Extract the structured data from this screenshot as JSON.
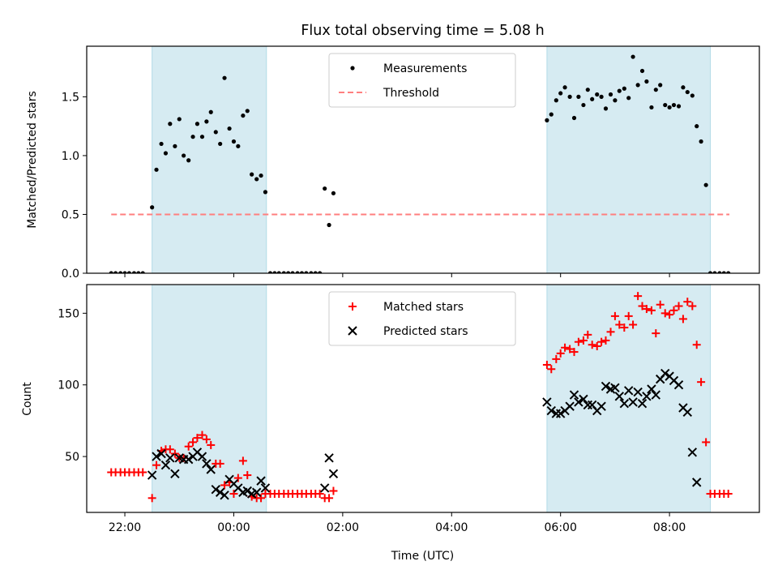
{
  "chart_data": [
    {
      "type": "scatter",
      "title": "Flux total observing time = 5.08 h",
      "ylabel": "Matched/Predicted stars",
      "xlabel": "",
      "xlim": [
        -2.7,
        9.65
      ],
      "ylim": [
        0,
        1.93
      ],
      "yticks": [
        0.0,
        0.5,
        1.0,
        1.5
      ],
      "ytick_labels": [
        "0.0",
        "0.5",
        "1.0",
        "1.5"
      ],
      "xticks": [
        -2,
        0,
        2,
        4,
        6,
        8
      ],
      "xticks_labeled": false,
      "observing_windows": [
        [
          -1.5,
          0.6
        ],
        [
          5.75,
          8.75
        ]
      ],
      "window_color": "#add8e6",
      "legend": {
        "placement": "upper center",
        "entries": [
          "Measurements",
          "Threshold"
        ]
      },
      "series": [
        {
          "name": "Measurements",
          "style": "dot",
          "color": "#000000",
          "x": [
            -2.25,
            -2.17,
            -2.08,
            -2.0,
            -1.92,
            -1.83,
            -1.75,
            -1.67,
            -1.5,
            -1.42,
            -1.33,
            -1.25,
            -1.17,
            -1.08,
            -1.0,
            -0.92,
            -0.83,
            -0.75,
            -0.67,
            -0.58,
            -0.5,
            -0.42,
            -0.33,
            -0.25,
            -0.17,
            -0.08,
            0.0,
            0.08,
            0.17,
            0.25,
            0.33,
            0.42,
            0.5,
            0.58,
            0.67,
            0.75,
            0.83,
            0.92,
            1.0,
            1.08,
            1.17,
            1.25,
            1.33,
            1.42,
            1.5,
            1.58,
            1.67,
            1.75,
            1.83,
            5.75,
            5.83,
            5.92,
            6.0,
            6.08,
            6.17,
            6.25,
            6.33,
            6.42,
            6.5,
            6.58,
            6.67,
            6.75,
            6.83,
            6.92,
            7.0,
            7.08,
            7.17,
            7.25,
            7.33,
            7.42,
            7.5,
            7.58,
            7.67,
            7.75,
            7.83,
            7.92,
            8.0,
            8.08,
            8.17,
            8.25,
            8.33,
            8.42,
            8.5,
            8.58,
            8.67,
            8.75,
            8.83,
            8.92,
            9.0,
            9.08
          ],
          "y": [
            0,
            0,
            0,
            0,
            0,
            0,
            0,
            0,
            0.56,
            0.88,
            1.1,
            1.02,
            1.27,
            1.08,
            1.31,
            1.0,
            0.96,
            1.16,
            1.27,
            1.16,
            1.29,
            1.37,
            1.2,
            1.1,
            1.66,
            1.23,
            1.12,
            1.08,
            1.34,
            1.38,
            0.84,
            0.8,
            0.83,
            0.69,
            0,
            0,
            0,
            0,
            0,
            0,
            0,
            0,
            0,
            0,
            0,
            0,
            0.72,
            0.41,
            0.68,
            1.3,
            1.35,
            1.47,
            1.53,
            1.58,
            1.5,
            1.32,
            1.5,
            1.43,
            1.56,
            1.48,
            1.52,
            1.5,
            1.4,
            1.52,
            1.47,
            1.55,
            1.57,
            1.49,
            1.84,
            1.6,
            1.72,
            1.63,
            1.41,
            1.56,
            1.6,
            1.43,
            1.41,
            1.43,
            1.42,
            1.58,
            1.54,
            1.51,
            1.25,
            1.12,
            0.75,
            0,
            0,
            0,
            0,
            0
          ]
        },
        {
          "name": "Threshold",
          "style": "dashed-line",
          "color": "#ff7f7f",
          "x": [
            -2.25,
            9.1
          ],
          "y": [
            0.5,
            0.5
          ]
        }
      ]
    },
    {
      "type": "scatter",
      "title": "",
      "ylabel": "Count",
      "xlabel": "Time (UTC)",
      "xlim": [
        -2.7,
        9.65
      ],
      "ylim": [
        11,
        170
      ],
      "yticks": [
        50,
        100,
        150
      ],
      "ytick_labels": [
        "50",
        "100",
        "150"
      ],
      "xticks": [
        -2,
        0,
        2,
        4,
        6,
        8
      ],
      "xtick_labels": [
        "22:00",
        "00:00",
        "02:00",
        "04:00",
        "06:00",
        "08:00"
      ],
      "observing_windows": [
        [
          -1.5,
          0.6
        ],
        [
          5.75,
          8.75
        ]
      ],
      "window_color": "#add8e6",
      "legend": {
        "placement": "upper center",
        "entries": [
          "Matched stars",
          "Predicted stars"
        ]
      },
      "series": [
        {
          "name": "Matched stars",
          "style": "plus",
          "color": "#ff0000",
          "x": [
            -2.25,
            -2.17,
            -2.08,
            -2.0,
            -1.92,
            -1.83,
            -1.75,
            -1.67,
            -1.5,
            -1.42,
            -1.33,
            -1.25,
            -1.17,
            -1.08,
            -1.0,
            -0.92,
            -0.83,
            -0.75,
            -0.67,
            -0.58,
            -0.5,
            -0.42,
            -0.33,
            -0.25,
            -0.17,
            -0.08,
            0.0,
            0.08,
            0.17,
            0.25,
            0.33,
            0.42,
            0.5,
            0.58,
            0.67,
            0.75,
            0.83,
            0.92,
            1.0,
            1.08,
            1.17,
            1.25,
            1.33,
            1.42,
            1.5,
            1.58,
            1.67,
            1.75,
            1.83,
            5.75,
            5.83,
            5.92,
            6.0,
            6.08,
            6.17,
            6.25,
            6.33,
            6.42,
            6.5,
            6.58,
            6.67,
            6.75,
            6.83,
            6.92,
            7.0,
            7.08,
            7.17,
            7.25,
            7.33,
            7.42,
            7.5,
            7.58,
            7.67,
            7.75,
            7.83,
            7.92,
            8.0,
            8.08,
            8.17,
            8.25,
            8.33,
            8.42,
            8.5,
            8.58,
            8.67,
            8.75,
            8.83,
            8.92,
            9.0,
            9.08
          ],
          "y": [
            39,
            39,
            39,
            39,
            39,
            39,
            39,
            39,
            21,
            44,
            54,
            55,
            55,
            52,
            49,
            49,
            57,
            60,
            63,
            65,
            62,
            58,
            45,
            45,
            30,
            32,
            24,
            35,
            47,
            37,
            22,
            21,
            21,
            24,
            24,
            24,
            24,
            24,
            24,
            24,
            24,
            24,
            24,
            24,
            24,
            24,
            21,
            21,
            26,
            114,
            111,
            118,
            122,
            126,
            125,
            123,
            130,
            131,
            135,
            128,
            127,
            130,
            131,
            137,
            148,
            142,
            140,
            148,
            142,
            162,
            155,
            153,
            152,
            136,
            156,
            150,
            149,
            152,
            155,
            146,
            158,
            155,
            128,
            102,
            60,
            24,
            24,
            24,
            24,
            24
          ]
        },
        {
          "name": "Predicted stars",
          "style": "x",
          "color": "#000000",
          "x": [
            -1.5,
            -1.42,
            -1.33,
            -1.25,
            -1.17,
            -1.08,
            -1.0,
            -0.92,
            -0.83,
            -0.75,
            -0.67,
            -0.58,
            -0.5,
            -0.42,
            -0.33,
            -0.25,
            -0.17,
            -0.08,
            0.0,
            0.08,
            0.17,
            0.25,
            0.33,
            0.42,
            0.5,
            0.58,
            1.67,
            1.75,
            1.83,
            5.75,
            5.83,
            5.92,
            6.0,
            6.08,
            6.17,
            6.25,
            6.33,
            6.42,
            6.5,
            6.58,
            6.67,
            6.75,
            6.83,
            6.92,
            7.0,
            7.08,
            7.17,
            7.25,
            7.33,
            7.42,
            7.5,
            7.58,
            7.67,
            7.75,
            7.83,
            7.92,
            8.0,
            8.08,
            8.17,
            8.25,
            8.33,
            8.42,
            8.5,
            8.58,
            8.67,
            8.75
          ],
          "y": [
            37,
            50,
            52,
            44,
            49,
            38,
            49,
            48,
            48,
            50,
            53,
            50,
            45,
            41,
            27,
            25,
            23,
            34,
            31,
            28,
            25,
            26,
            24,
            25,
            33,
            28,
            28,
            49,
            38,
            88,
            82,
            80,
            80,
            82,
            85,
            93,
            88,
            90,
            86,
            86,
            82,
            85,
            99,
            97,
            98,
            92,
            87,
            96,
            88,
            95,
            87,
            92,
            97,
            93,
            104,
            108,
            106,
            103,
            100,
            84,
            81,
            53,
            32,
            0,
            0,
            0
          ]
        }
      ]
    }
  ]
}
